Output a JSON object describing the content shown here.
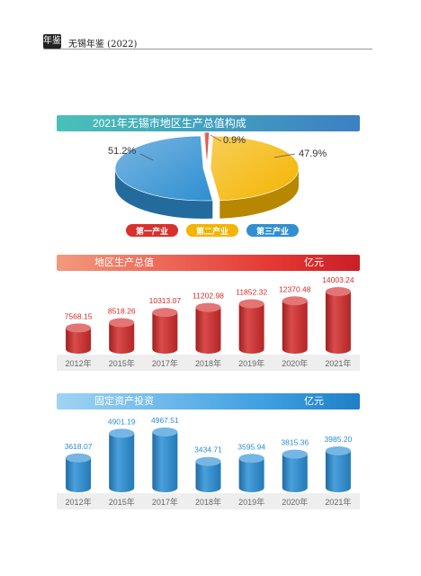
{
  "header": {
    "logo_text": "年鉴",
    "title": "无锡年鉴 (2022)"
  },
  "chart_data": [
    {
      "type": "pie",
      "title": "2021年无锡市地区生产总值构成",
      "categories": [
        "第一产业",
        "第二产业",
        "第三产业"
      ],
      "values": [
        0.9,
        47.9,
        51.2
      ],
      "labels": [
        "0.9%",
        "47.9%",
        "51.2%"
      ],
      "colors": [
        "#d9302c",
        "#f4b400",
        "#2f8fd1"
      ],
      "legend": "bottom"
    },
    {
      "type": "bar",
      "title": "地区生产总值",
      "unit": "亿元",
      "categories": [
        "2012年",
        "2015年",
        "2017年",
        "2018年",
        "2019年",
        "2020年",
        "2021年"
      ],
      "values": [
        7568.15,
        8518.26,
        10313.07,
        11202.98,
        11852.32,
        12370.48,
        14003.24
      ],
      "labels": [
        "7568.15",
        "8518.26",
        "10313.07",
        "11202.98",
        "11852.32",
        "12370.48",
        "14003.24"
      ],
      "color": "#d42b2b"
    },
    {
      "type": "bar",
      "title": "固定资产投资",
      "unit": "亿元",
      "categories": [
        "2012年",
        "2015年",
        "2017年",
        "2018年",
        "2019年",
        "2020年",
        "2021年"
      ],
      "values": [
        3618.07,
        4901.19,
        4967.51,
        3434.71,
        3595.94,
        3815.36,
        3985.2
      ],
      "labels": [
        "3618.07",
        "4901.19",
        "4967.51",
        "3434.71",
        "3595.94",
        "3815.36",
        "3985.20"
      ],
      "color": "#2a8fd6"
    }
  ]
}
